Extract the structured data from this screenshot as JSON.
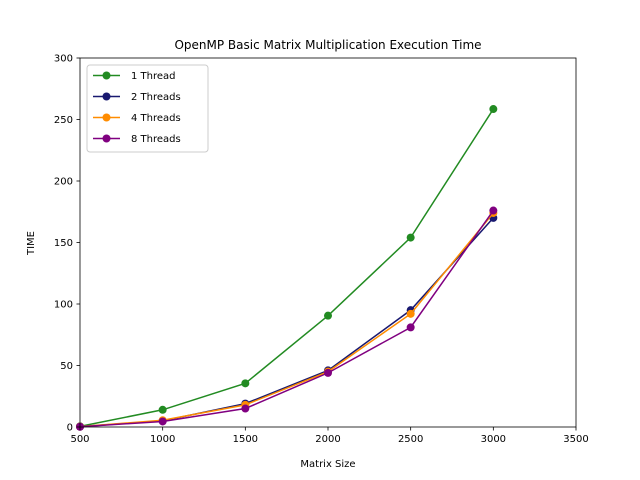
{
  "chart_data": {
    "type": "line",
    "title": "OpenMP Basic Matrix Multiplication Execution Time",
    "xlabel": "Matrix Size",
    "ylabel": "TIME",
    "xlim": [
      500,
      3500
    ],
    "ylim": [
      0,
      300
    ],
    "xticks": [
      500,
      1000,
      1500,
      2000,
      2500,
      3000,
      3500
    ],
    "yticks": [
      0,
      50,
      100,
      150,
      200,
      250,
      300
    ],
    "grid": false,
    "legend_position": "top-left",
    "x": [
      500,
      1000,
      1500,
      2000,
      2500,
      3000
    ],
    "series": [
      {
        "name": "1 Thread",
        "color": "#228b22",
        "values": [
          0.5,
          14,
          35.5,
          90.5,
          154,
          258.5
        ]
      },
      {
        "name": "2 Threads",
        "color": "#191970",
        "values": [
          0.3,
          5,
          19,
          46,
          95,
          170
        ]
      },
      {
        "name": "4 Threads",
        "color": "#ff8c00",
        "values": [
          0.3,
          5.5,
          18,
          45,
          92,
          174
        ]
      },
      {
        "name": "8 Threads",
        "color": "#800080",
        "values": [
          0.2,
          4.5,
          15,
          44,
          81,
          176
        ]
      }
    ]
  }
}
